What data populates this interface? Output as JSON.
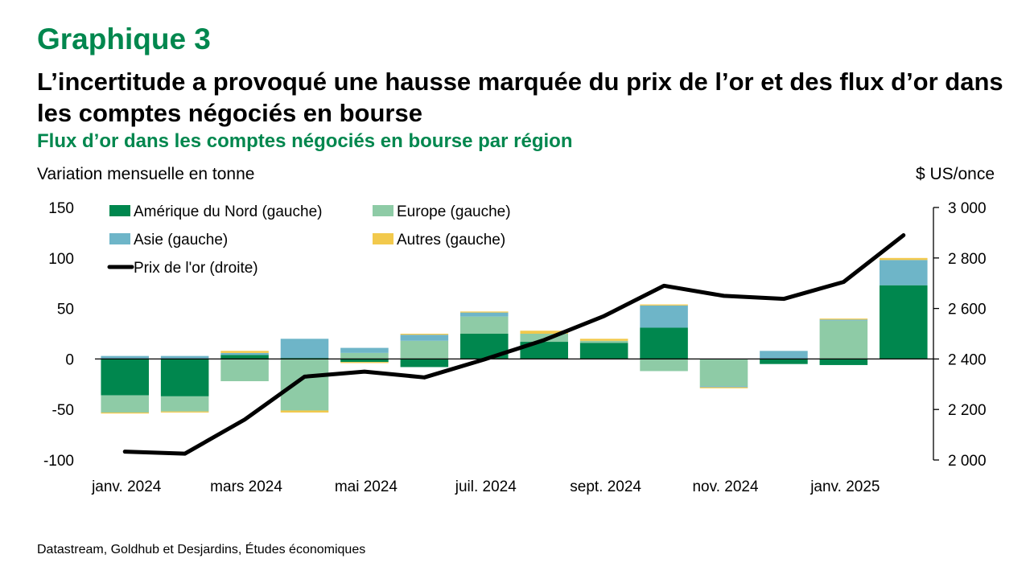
{
  "header": {
    "eyebrow": "Graphique 3",
    "title": "L’incertitude a provoqué une hausse marquée du prix de l’or et des flux d’or dans les comptes négociés en bourse",
    "subtitle": "Flux d’or dans les comptes négociés en bourse par région",
    "left_unit": "Variation mensuelle en tonne",
    "right_unit": "$ US/once"
  },
  "source": "Datastream, Goldhub et Desjardins, Études économiques",
  "chart_data": {
    "type": "bar",
    "stacked": true,
    "categories": [
      "janv. 2024",
      "févr. 2024",
      "mars 2024",
      "avr. 2024",
      "mai 2024",
      "juin 2024",
      "juil. 2024",
      "août 2024",
      "sept. 2024",
      "oct. 2024",
      "nov. 2024",
      "déc. 2024",
      "janv. 2025",
      "févr. 2025"
    ],
    "x_tick_labels": [
      "janv. 2024",
      "mars 2024",
      "mai 2024",
      "juil. 2024",
      "sept. 2024",
      "nov. 2024",
      "janv. 2025"
    ],
    "x_tick_every": 2,
    "series": [
      {
        "name": "Amérique du Nord (gauche)",
        "color": "#00874E",
        "axis": "left",
        "values": [
          -36,
          -37,
          4,
          1,
          -3,
          -8,
          25,
          17,
          16,
          31,
          0,
          -5,
          -6,
          73
        ]
      },
      {
        "name": "Europe (gauche)",
        "color": "#8ECBA6",
        "axis": "left",
        "values": [
          -17,
          -15,
          -22,
          -51,
          6,
          18,
          17,
          8,
          2,
          -12,
          -27,
          0,
          38,
          0
        ]
      },
      {
        "name": "Asie (gauche)",
        "color": "#6EB5C8",
        "axis": "left",
        "values": [
          3,
          3,
          2,
          19,
          5,
          6,
          4,
          0,
          0,
          22,
          -1,
          8,
          1,
          25
        ]
      },
      {
        "name": "Autres (gauche)",
        "color": "#F2C94C",
        "axis": "left",
        "values": [
          -1,
          -1,
          2,
          -2,
          -1,
          1,
          1,
          3,
          2,
          1,
          -1,
          0,
          1,
          2
        ]
      }
    ],
    "line_series": {
      "name": "Prix de l'or (droite)",
      "color": "#000000",
      "axis": "right",
      "values": [
        2033,
        2025,
        2160,
        2330,
        2350,
        2327,
        2398,
        2475,
        2570,
        2690,
        2650,
        2638,
        2705,
        2890
      ]
    },
    "left_axis": {
      "min": -100,
      "max": 150,
      "ticks": [
        -100,
        -50,
        0,
        50,
        100,
        150
      ],
      "labels": [
        "-100",
        "-50",
        "0",
        "50",
        "100",
        "150"
      ]
    },
    "right_axis": {
      "min": 2000,
      "max": 3000,
      "ticks": [
        2000,
        2200,
        2400,
        2600,
        2800,
        3000
      ],
      "labels": [
        "2 000",
        "2 200",
        "2 400",
        "2 600",
        "2 800",
        "3 000"
      ]
    },
    "grid": false,
    "legend_position": "top-left"
  }
}
